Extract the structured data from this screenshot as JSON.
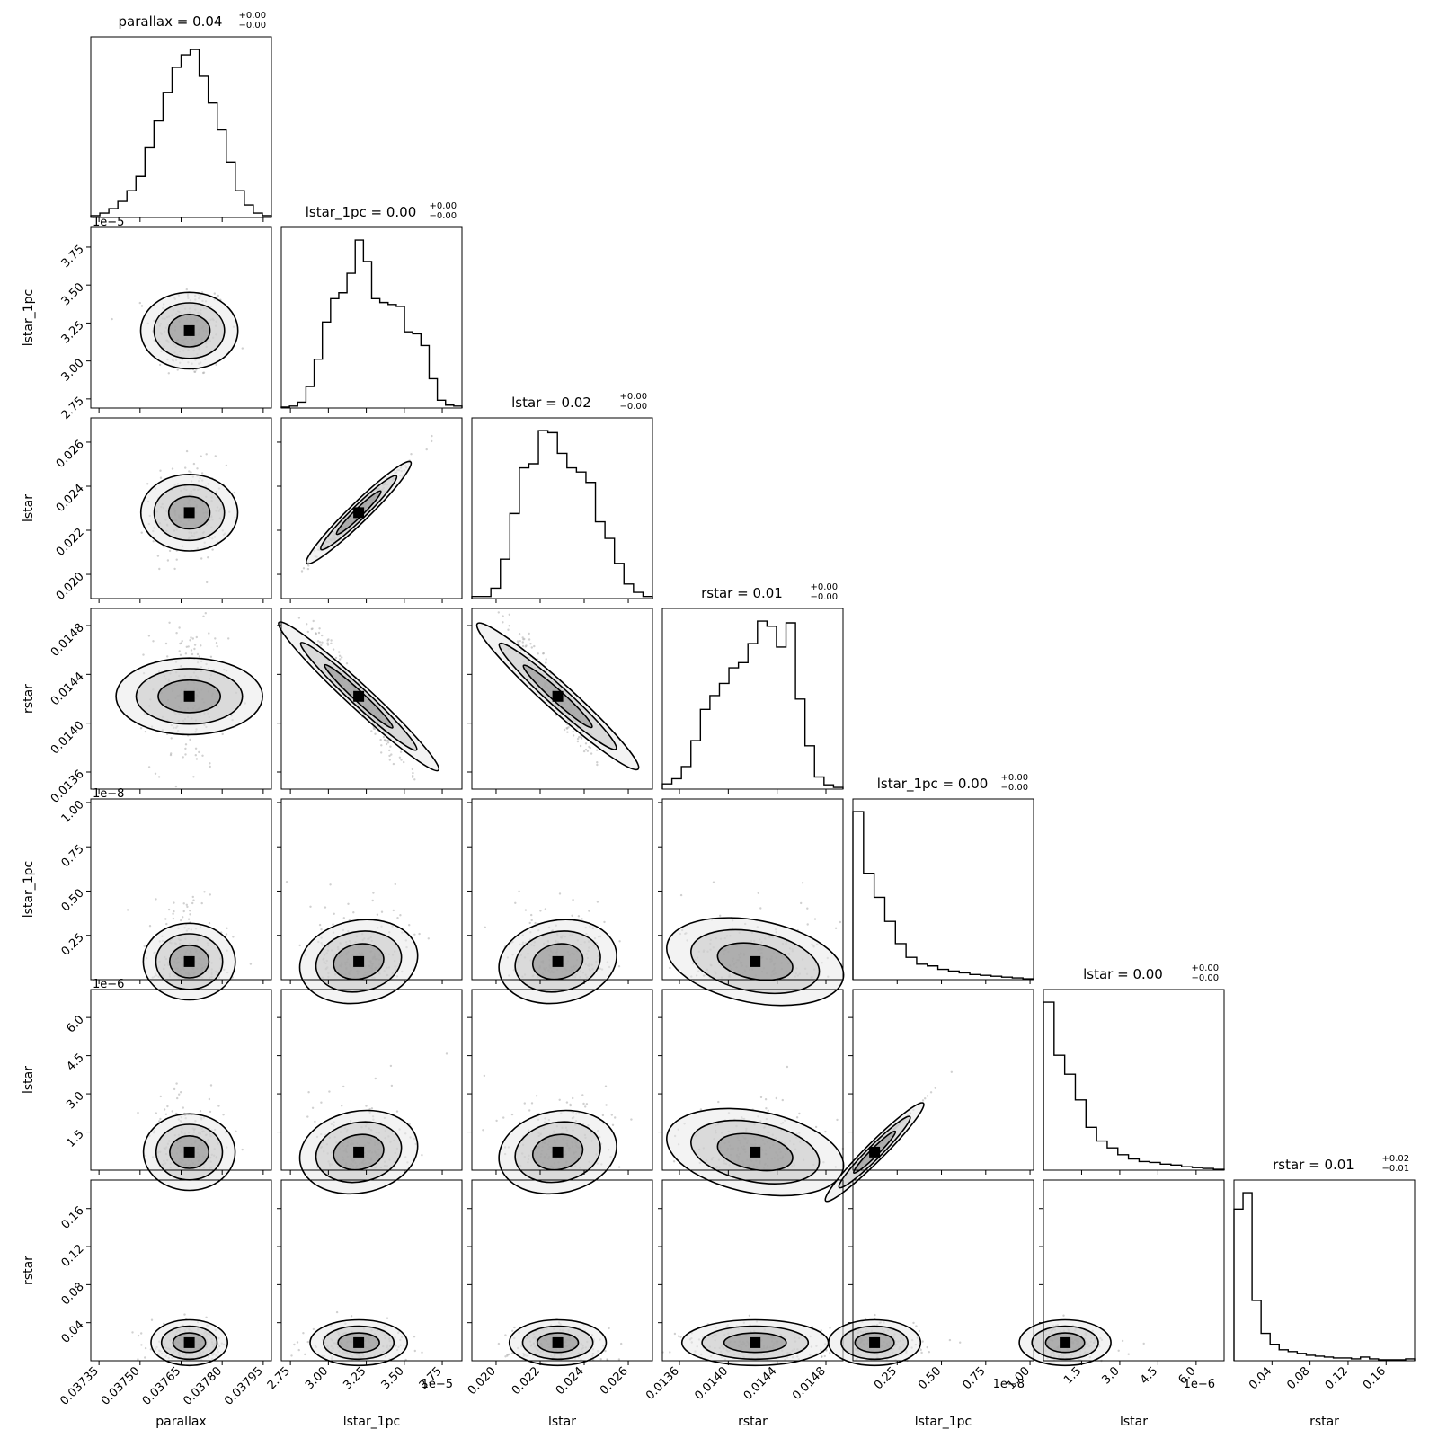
{
  "chart_data": {
    "type": "corner",
    "params": [
      {
        "name": "parallax",
        "title": "parallax = 0.04",
        "title_sup": "+0.00",
        "title_sub": "−0.00",
        "range": [
          0.03732,
          0.03798
        ],
        "ticks": [
          0.03735,
          0.0375,
          0.03765,
          0.0378,
          0.03795
        ],
        "tick_labels": [
          "0.03735",
          "0.03750",
          "0.03765",
          "0.03780",
          "0.03795"
        ],
        "offset": "",
        "hist": [
          2,
          5,
          10,
          18,
          30,
          46,
          78,
          108,
          140,
          168,
          182,
          188,
          158,
          128,
          98,
          62,
          30,
          14,
          5,
          2
        ],
        "center": 0.03768,
        "spread": 7e-05
      },
      {
        "name": "lstar_1pc",
        "title": "lstar_1pc = 0.00",
        "title_sup": "+0.00",
        "title_sub": "−0.00",
        "range": [
          2.69,
          3.88
        ],
        "ticks": [
          2.75,
          3.0,
          3.25,
          3.5,
          3.75
        ],
        "tick_labels": [
          "2.75",
          "3.00",
          "3.25",
          "3.50",
          "3.75"
        ],
        "offset": "1e−5",
        "hist": [
          1,
          2,
          6,
          22,
          50,
          88,
          112,
          118,
          138,
          172,
          150,
          112,
          108,
          106,
          104,
          78,
          76,
          64,
          30,
          8,
          3,
          2
        ],
        "center": 3.2,
        "spread": 0.16
      },
      {
        "name": "lstar",
        "title": "lstar = 0.02",
        "title_sup": "+0.00",
        "title_sub": "−0.00",
        "range": [
          0.0189,
          0.0271
        ],
        "ticks": [
          0.02,
          0.022,
          0.024,
          0.026
        ],
        "tick_labels": [
          "0.020",
          "0.022",
          "0.024",
          "0.026"
        ],
        "offset": "",
        "hist": [
          2,
          2,
          10,
          38,
          82,
          126,
          130,
          162,
          160,
          140,
          126,
          122,
          112,
          74,
          58,
          34,
          14,
          6,
          2
        ],
        "center": 0.0228,
        "spread": 0.0011
      },
      {
        "name": "rstar",
        "title": "rstar = 0.01",
        "title_sup": "+0.00",
        "title_sub": "−0.00",
        "range": [
          0.01346,
          0.01494
        ],
        "ticks": [
          0.0136,
          0.014,
          0.0144,
          0.0148
        ],
        "tick_labels": [
          "0.0136",
          "0.0140",
          "0.0144",
          "0.0148"
        ],
        "offset": "",
        "hist": [
          6,
          12,
          26,
          56,
          92,
          108,
          122,
          140,
          146,
          168,
          194,
          188,
          164,
          192,
          104,
          50,
          14,
          5,
          2
        ],
        "center": 0.01422,
        "spread": 0.0003
      },
      {
        "name": "lstar_1pc",
        "title": "lstar_1pc = 0.00",
        "title_sup": "+0.00",
        "title_sub": "−0.00",
        "range": [
          0.0,
          1.02
        ],
        "ticks": [
          0.25,
          0.5,
          0.75,
          1.0
        ],
        "tick_labels": [
          "0.25",
          "0.50",
          "0.75",
          "1.00"
        ],
        "offset": "1e−8",
        "hist": [
          196,
          124,
          96,
          68,
          42,
          26,
          18,
          16,
          12,
          10,
          8,
          6,
          5,
          4,
          3,
          2,
          1
        ],
        "center": 0.08,
        "spread": 0.13
      },
      {
        "name": "lstar",
        "title": "lstar = 0.00",
        "title_sup": "+0.00",
        "title_sub": "−0.00",
        "range": [
          0.0,
          7.1
        ],
        "ticks": [
          1.5,
          3.0,
          4.5,
          6.0
        ],
        "tick_labels": [
          "1.5",
          "3.0",
          "4.5",
          "6.0"
        ],
        "offset": "1e−6",
        "hist": [
          196,
          134,
          112,
          82,
          50,
          34,
          26,
          18,
          13,
          10,
          9,
          7,
          6,
          4,
          3,
          2,
          1
        ],
        "center": 0.6,
        "spread": 0.9
      },
      {
        "name": "rstar",
        "title": "rstar = 0.01",
        "title_sup": "+0.02",
        "title_sub": "−0.01",
        "range": [
          0.0,
          0.19
        ],
        "ticks": [
          0.04,
          0.08,
          0.12,
          0.16
        ],
        "tick_labels": [
          "0.04",
          "0.08",
          "0.12",
          "0.16"
        ],
        "offset": "",
        "hist": [
          166,
          184,
          66,
          30,
          18,
          12,
          10,
          8,
          6,
          5,
          4,
          3,
          3,
          2,
          4,
          2,
          1,
          1,
          1,
          2
        ],
        "center": 0.015,
        "spread": 0.012
      }
    ],
    "pair_correlations": {
      "2-1": 0.99,
      "3-1": -0.97,
      "3-2": -0.96,
      "4-1": 0.45,
      "4-2": 0.45,
      "4-3": -0.45,
      "5-1": 0.45,
      "5-2": 0.45,
      "5-3": -0.45,
      "5-4": 1.0
    },
    "contour_levels": 3,
    "show_datapoints": true,
    "grid": false,
    "colors": {
      "hist": "#000000",
      "contour": "#000000",
      "points": "#b0b0b0",
      "density": "#000000"
    }
  }
}
